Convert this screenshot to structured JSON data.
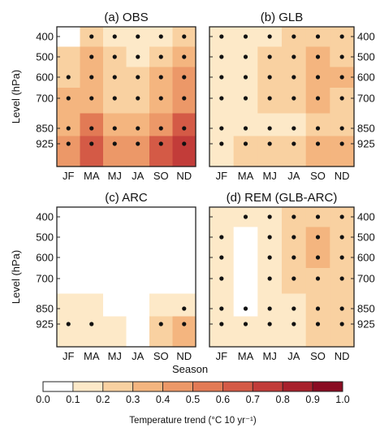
{
  "colors": {
    "scale": [
      "#ffffff",
      "#fde9c8",
      "#f9d1a1",
      "#f4b57f",
      "#ec9868",
      "#e27a55",
      "#d45a46",
      "#c23c39",
      "#a8212c",
      "#8a0c22"
    ],
    "dot": "#111111",
    "frame": "#222222"
  },
  "chart_data": [
    {
      "type": "heatmap",
      "title": "(a) OBS",
      "ylabel": "Level (hPa)",
      "xlabel": "",
      "x": [
        "JF",
        "MA",
        "MJ",
        "JA",
        "SO",
        "ND"
      ],
      "y": [
        400,
        500,
        600,
        700,
        850,
        925
      ],
      "values": [
        [
          0.05,
          0.2,
          0.15,
          0.12,
          0.15,
          0.22
        ],
        [
          0.2,
          0.3,
          0.2,
          0.15,
          0.25,
          0.35
        ],
        [
          0.25,
          0.3,
          0.25,
          0.2,
          0.3,
          0.4
        ],
        [
          0.3,
          0.35,
          0.25,
          0.2,
          0.3,
          0.45
        ],
        [
          0.35,
          0.5,
          0.35,
          0.3,
          0.45,
          0.6
        ],
        [
          0.4,
          0.6,
          0.4,
          0.4,
          0.6,
          0.7
        ]
      ],
      "significance": [
        [
          0,
          1,
          1,
          1,
          1,
          1
        ],
        [
          0,
          1,
          1,
          1,
          1,
          1
        ],
        [
          1,
          1,
          1,
          1,
          1,
          1
        ],
        [
          1,
          1,
          1,
          1,
          1,
          1
        ],
        [
          1,
          1,
          1,
          1,
          1,
          1
        ],
        [
          1,
          1,
          1,
          1,
          1,
          1
        ]
      ]
    },
    {
      "type": "heatmap",
      "title": "(b) GLB",
      "ylabel": "",
      "xlabel": "",
      "x": [
        "JF",
        "MA",
        "MJ",
        "JA",
        "SO",
        "ND"
      ],
      "y": [
        400,
        500,
        600,
        700,
        850,
        925
      ],
      "values": [
        [
          0.1,
          0.1,
          0.15,
          0.2,
          0.25,
          0.22
        ],
        [
          0.15,
          0.15,
          0.2,
          0.25,
          0.3,
          0.28
        ],
        [
          0.15,
          0.15,
          0.2,
          0.25,
          0.3,
          0.3
        ],
        [
          0.1,
          0.15,
          0.2,
          0.2,
          0.3,
          0.28
        ],
        [
          0.1,
          0.15,
          0.15,
          0.15,
          0.2,
          0.25
        ],
        [
          0.15,
          0.2,
          0.2,
          0.2,
          0.3,
          0.35
        ]
      ],
      "significance": [
        [
          1,
          1,
          1,
          1,
          1,
          1
        ],
        [
          1,
          1,
          1,
          1,
          1,
          1
        ],
        [
          1,
          1,
          1,
          1,
          1,
          1
        ],
        [
          1,
          1,
          1,
          1,
          1,
          1
        ],
        [
          1,
          1,
          1,
          1,
          1,
          1
        ],
        [
          1,
          1,
          1,
          1,
          1,
          1
        ]
      ]
    },
    {
      "type": "heatmap",
      "title": "(c) ARC",
      "ylabel": "Level (hPa)",
      "xlabel": "",
      "x": [
        "JF",
        "MA",
        "MJ",
        "JA",
        "SO",
        "ND"
      ],
      "y": [
        400,
        500,
        600,
        700,
        850,
        925
      ],
      "values": [
        [
          0.0,
          0.0,
          0.0,
          0.0,
          0.0,
          0.0
        ],
        [
          0.0,
          0.0,
          0.0,
          0.0,
          0.0,
          0.0
        ],
        [
          0.0,
          0.0,
          0.0,
          0.0,
          0.0,
          0.0
        ],
        [
          0.0,
          0.0,
          0.0,
          0.0,
          0.0,
          0.0
        ],
        [
          0.12,
          0.1,
          0.05,
          0.05,
          0.1,
          0.15
        ],
        [
          0.15,
          0.15,
          0.1,
          0.05,
          0.2,
          0.3
        ]
      ],
      "significance": [
        [
          0,
          0,
          0,
          0,
          0,
          0
        ],
        [
          0,
          0,
          0,
          0,
          0,
          0
        ],
        [
          0,
          0,
          0,
          0,
          0,
          0
        ],
        [
          0,
          0,
          0,
          0,
          0,
          0
        ],
        [
          0,
          0,
          0,
          0,
          0,
          1
        ],
        [
          1,
          1,
          0,
          0,
          1,
          1
        ]
      ]
    },
    {
      "type": "heatmap",
      "title": "(d) REM (GLB-ARC)",
      "ylabel": "",
      "xlabel": "Season",
      "x": [
        "JF",
        "MA",
        "MJ",
        "JA",
        "SO",
        "ND"
      ],
      "y": [
        400,
        500,
        600,
        700,
        850,
        925
      ],
      "values": [
        [
          0.1,
          0.15,
          0.15,
          0.2,
          0.22,
          0.2
        ],
        [
          0.12,
          0.05,
          0.15,
          0.2,
          0.3,
          0.2
        ],
        [
          0.15,
          0.0,
          0.15,
          0.2,
          0.3,
          0.25
        ],
        [
          0.15,
          0.0,
          0.1,
          0.2,
          0.25,
          0.2
        ],
        [
          0.15,
          0.05,
          0.1,
          0.15,
          0.2,
          0.2
        ],
        [
          0.15,
          0.1,
          0.15,
          0.15,
          0.2,
          0.2
        ]
      ],
      "significance": [
        [
          0,
          1,
          1,
          1,
          1,
          1
        ],
        [
          1,
          0,
          1,
          1,
          1,
          1
        ],
        [
          1,
          0,
          1,
          1,
          1,
          1
        ],
        [
          1,
          0,
          1,
          1,
          1,
          1
        ],
        [
          1,
          1,
          1,
          1,
          1,
          1
        ],
        [
          1,
          1,
          1,
          1,
          1,
          1
        ]
      ]
    }
  ],
  "colorbar": {
    "ticks": [
      "0.0",
      "0.1",
      "0.2",
      "0.3",
      "0.4",
      "0.5",
      "0.6",
      "0.7",
      "0.8",
      "0.9",
      "1.0"
    ],
    "label": "Temperature trend (°C 10 yr⁻¹)"
  }
}
